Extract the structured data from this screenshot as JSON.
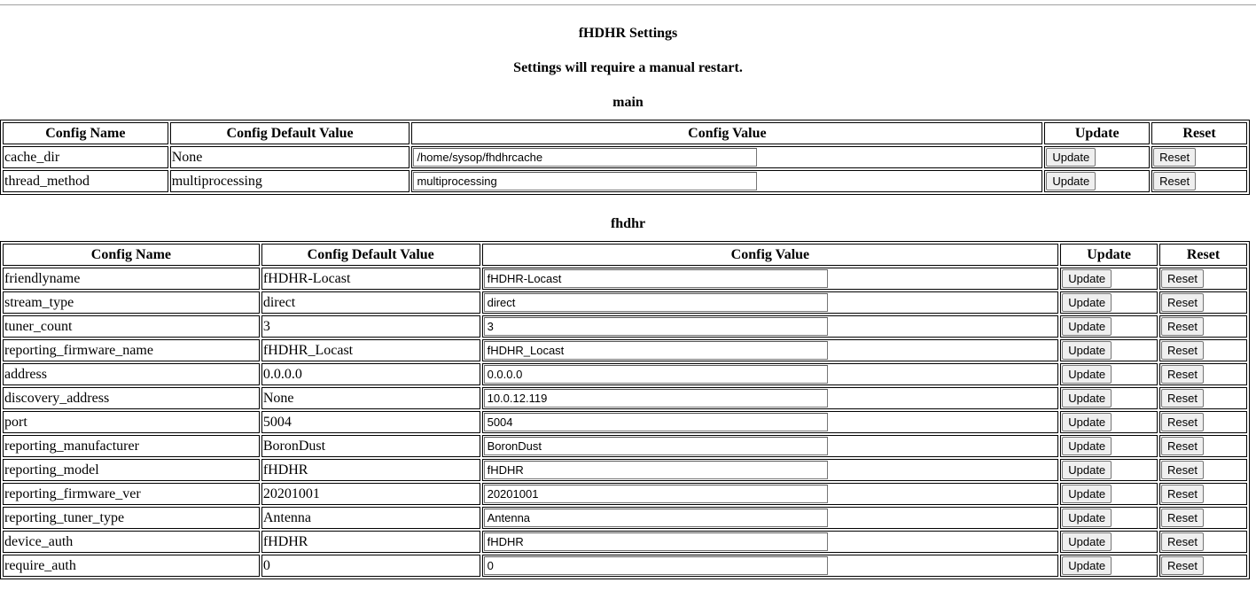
{
  "title": "fHDHR Settings",
  "notice": "Settings will require a manual restart.",
  "headers": [
    "Config Name",
    "Config Default Value",
    "Config Value",
    "Update",
    "Reset"
  ],
  "update_label": "Update",
  "reset_label": "Reset",
  "sections": [
    {
      "name": "main",
      "rows": [
        {
          "name": "cache_dir",
          "default": "None",
          "value": "/home/sysop/fhdhrcache"
        },
        {
          "name": "thread_method",
          "default": "multiprocessing",
          "value": "multiprocessing"
        }
      ]
    },
    {
      "name": "fhdhr",
      "rows": [
        {
          "name": "friendlyname",
          "default": "fHDHR-Locast",
          "value": "fHDHR-Locast"
        },
        {
          "name": "stream_type",
          "default": "direct",
          "value": "direct"
        },
        {
          "name": "tuner_count",
          "default": "3",
          "value": "3"
        },
        {
          "name": "reporting_firmware_name",
          "default": "fHDHR_Locast",
          "value": "fHDHR_Locast"
        },
        {
          "name": "address",
          "default": "0.0.0.0",
          "value": "0.0.0.0"
        },
        {
          "name": "discovery_address",
          "default": "None",
          "value": "10.0.12.119"
        },
        {
          "name": "port",
          "default": "5004",
          "value": "5004"
        },
        {
          "name": "reporting_manufacturer",
          "default": "BoronDust",
          "value": "BoronDust"
        },
        {
          "name": "reporting_model",
          "default": "fHDHR",
          "value": "fHDHR"
        },
        {
          "name": "reporting_firmware_ver",
          "default": "20201001",
          "value": "20201001"
        },
        {
          "name": "reporting_tuner_type",
          "default": "Antenna",
          "value": "Antenna"
        },
        {
          "name": "device_auth",
          "default": "fHDHR",
          "value": "fHDHR"
        },
        {
          "name": "require_auth",
          "default": "0",
          "value": "0"
        }
      ]
    }
  ]
}
